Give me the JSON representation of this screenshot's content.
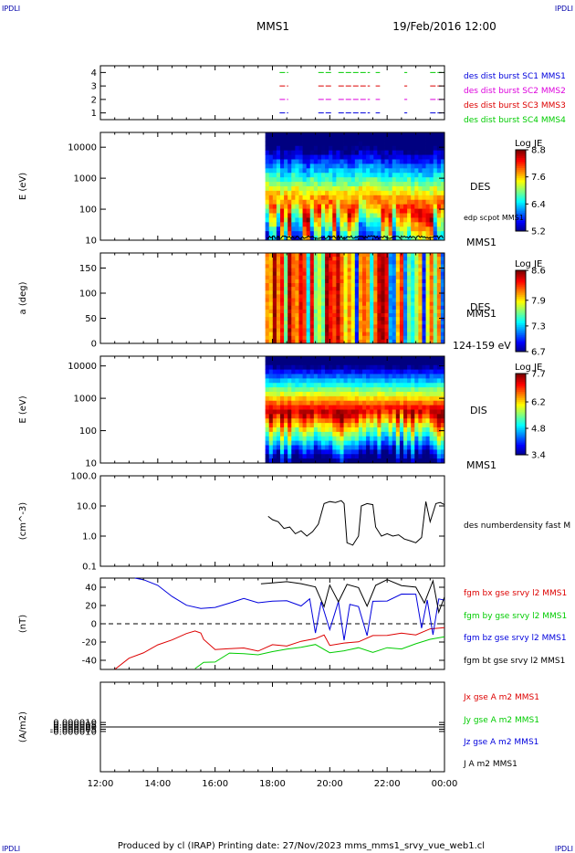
{
  "header": {
    "corner_tl": "IPDLI",
    "corner_tr": "IPDLI",
    "corner_bl": "IPDLI",
    "corner_br": "IPDLI",
    "mission": "MMS1",
    "datetime": "19/Feb/2016 12:00"
  },
  "footer": {
    "credit": "Produced by cl (IRAP)   Printing date: 27/Nov/2023   mms_mms1_srvy_vue_web1.cl"
  },
  "colors": {
    "blue": "#0000dd",
    "magenta": "#dd00dd",
    "red": "#dd0000",
    "green": "#00cc00",
    "black": "#000000"
  },
  "time_axis": {
    "ticks": [
      "12:00",
      "14:00",
      "16:00",
      "18:00",
      "20:00",
      "22:00",
      "00:00"
    ],
    "start_hour": 12,
    "end_hour": 24
  },
  "chart_data": [
    {
      "id": "availability",
      "type": "scatter",
      "ylabel": "",
      "ylim": [
        0.5,
        4.5
      ],
      "yticks": [
        "1",
        "2",
        "3",
        "4"
      ],
      "legend": [
        {
          "label": "des dist burst SC1 MMS1",
          "color": "#0000dd"
        },
        {
          "label": "des dist burst SC2 MMS2",
          "color": "#dd00dd"
        },
        {
          "label": "des dist burst SC3 MMS3",
          "color": "#dd0000"
        },
        {
          "label": "des dist burst SC4 MMS4",
          "color": "#00cc00"
        }
      ],
      "segments": [
        [
          18.25,
          18.55
        ],
        [
          19.6,
          20.1
        ],
        [
          20.3,
          21.4
        ],
        [
          21.6,
          21.75
        ],
        [
          22.6,
          22.7
        ],
        [
          23.5,
          23.9
        ],
        [
          23.95,
          24.0
        ]
      ]
    },
    {
      "id": "des-energy",
      "type": "heatmap",
      "ylabel": "E (eV)",
      "yscale": "log",
      "ylim": [
        10,
        30000
      ],
      "yticks": [
        "10",
        "100",
        "1000",
        "10000"
      ],
      "data_start_hour": 17.75,
      "label_right": "DES",
      "label_right2": "edp scpot MMS1",
      "label_bottom": "MMS1",
      "colorbar": {
        "title": "Log JE",
        "ticks": [
          "8.8",
          "7.6",
          "6.4",
          "5.2"
        ],
        "min": 5.2,
        "max": 8.8
      }
    },
    {
      "id": "des-pitch",
      "type": "heatmap",
      "ylabel": "a (deg)",
      "ylim": [
        0,
        180
      ],
      "yticks": [
        "0",
        "50",
        "100",
        "150"
      ],
      "data_start_hour": 17.75,
      "label_right": "DES",
      "label_right2": "MMS1",
      "label_bottom": "124-159 eV",
      "colorbar": {
        "title": "Log JE",
        "ticks": [
          "8.6",
          "7.9",
          "7.3",
          "6.7"
        ],
        "min": 6.7,
        "max": 8.6
      }
    },
    {
      "id": "dis-energy",
      "type": "heatmap",
      "ylabel": "E (eV)",
      "yscale": "log",
      "ylim": [
        10,
        20000
      ],
      "yticks": [
        "10",
        "100",
        "1000",
        "10000"
      ],
      "data_start_hour": 17.75,
      "label_right": "DIS",
      "label_bottom": "MMS1",
      "colorbar": {
        "title": "Log JE",
        "ticks": [
          "7.7",
          "6.2",
          "4.8",
          "3.4"
        ],
        "min": 3.4,
        "max": 7.7
      }
    },
    {
      "id": "density",
      "type": "line",
      "ylabel": "(cm^-3)",
      "yscale": "log",
      "ylim": [
        0.1,
        100
      ],
      "yticks": [
        "0.1",
        "1.0",
        "10.0",
        "100.0"
      ],
      "series": [
        {
          "name": "des numberdensity fast M",
          "color": "#000000",
          "points": [
            [
              17.85,
              4.5
            ],
            [
              18.0,
              3.5
            ],
            [
              18.2,
              3.0
            ],
            [
              18.4,
              1.8
            ],
            [
              18.6,
              2.0
            ],
            [
              18.8,
              1.2
            ],
            [
              19.0,
              1.5
            ],
            [
              19.2,
              1.0
            ],
            [
              19.4,
              1.4
            ],
            [
              19.6,
              2.5
            ],
            [
              19.8,
              12.0
            ],
            [
              20.0,
              14.0
            ],
            [
              20.2,
              13.0
            ],
            [
              20.4,
              15.0
            ],
            [
              20.5,
              12.0
            ],
            [
              20.6,
              0.6
            ],
            [
              20.8,
              0.5
            ],
            [
              21.0,
              1.0
            ],
            [
              21.1,
              10.0
            ],
            [
              21.3,
              12.0
            ],
            [
              21.5,
              11.0
            ],
            [
              21.6,
              2.0
            ],
            [
              21.8,
              1.0
            ],
            [
              22.0,
              1.2
            ],
            [
              22.2,
              1.0
            ],
            [
              22.4,
              1.1
            ],
            [
              22.6,
              0.8
            ],
            [
              22.8,
              0.7
            ],
            [
              23.0,
              0.6
            ],
            [
              23.2,
              0.9
            ],
            [
              23.35,
              14.0
            ],
            [
              23.5,
              3.0
            ],
            [
              23.7,
              12.0
            ],
            [
              23.85,
              13.0
            ],
            [
              24.0,
              11.0
            ]
          ]
        }
      ]
    },
    {
      "id": "magnetic-field",
      "type": "line",
      "ylabel": "(nT)",
      "ylim": [
        -50,
        50
      ],
      "yticks": [
        "-40",
        "-20",
        "0",
        "20",
        "40"
      ],
      "series": [
        {
          "name": "fgm bx gse srvy l2 MMS1",
          "color": "#dd0000",
          "points": [
            [
              12.5,
              -50
            ],
            [
              13.0,
              -40
            ],
            [
              13.5,
              -32
            ],
            [
              14.0,
              -25
            ],
            [
              14.5,
              -18
            ],
            [
              15.0,
              -10
            ],
            [
              15.3,
              -5
            ],
            [
              15.5,
              -8
            ],
            [
              15.6,
              -20
            ],
            [
              16.0,
              -28
            ],
            [
              16.5,
              -25
            ],
            [
              17.0,
              -28
            ],
            [
              17.5,
              -30
            ],
            [
              18.0,
              -25
            ],
            [
              18.5,
              -22
            ],
            [
              19.0,
              -20
            ],
            [
              19.5,
              -18
            ],
            [
              19.8,
              -12
            ],
            [
              20.0,
              -22
            ],
            [
              20.5,
              -20
            ],
            [
              21.0,
              -18
            ],
            [
              21.5,
              -14
            ],
            [
              22.0,
              -15
            ],
            [
              22.5,
              -12
            ],
            [
              23.0,
              -12
            ],
            [
              23.5,
              -8
            ],
            [
              24.0,
              -5
            ]
          ]
        },
        {
          "name": "fgm by gse srvy l2 MMS1",
          "color": "#00cc00",
          "points": [
            [
              15.3,
              -50
            ],
            [
              15.6,
              -44
            ],
            [
              16.0,
              -40
            ],
            [
              16.5,
              -32
            ],
            [
              17.0,
              -35
            ],
            [
              17.5,
              -33
            ],
            [
              18.0,
              -30
            ],
            [
              18.5,
              -30
            ],
            [
              19.0,
              -28
            ],
            [
              19.5,
              -25
            ],
            [
              20.0,
              -30
            ],
            [
              20.5,
              -28
            ],
            [
              21.0,
              -25
            ],
            [
              21.5,
              -30
            ],
            [
              22.0,
              -28
            ],
            [
              22.5,
              -25
            ],
            [
              23.0,
              -22
            ],
            [
              23.5,
              -20
            ],
            [
              24.0,
              -15
            ]
          ]
        },
        {
          "name": "fgm bz gse srvy l2 MMS1",
          "color": "#0000dd",
          "points": [
            [
              13.2,
              50
            ],
            [
              13.5,
              47
            ],
            [
              14.0,
              40
            ],
            [
              14.5,
              32
            ],
            [
              15.0,
              22
            ],
            [
              15.5,
              18
            ],
            [
              16.0,
              16
            ],
            [
              16.5,
              22
            ],
            [
              17.0,
              26
            ],
            [
              17.5,
              24
            ],
            [
              18.0,
              26
            ],
            [
              18.5,
              24
            ],
            [
              19.0,
              22
            ],
            [
              19.3,
              26
            ],
            [
              19.5,
              -10
            ],
            [
              19.7,
              24
            ],
            [
              20.0,
              -5
            ],
            [
              20.3,
              24
            ],
            [
              20.5,
              -15
            ],
            [
              20.7,
              22
            ],
            [
              21.0,
              20
            ],
            [
              21.3,
              -10
            ],
            [
              21.5,
              25
            ],
            [
              22.0,
              27
            ],
            [
              22.5,
              30
            ],
            [
              23.0,
              30
            ],
            [
              23.2,
              -5
            ],
            [
              23.4,
              28
            ],
            [
              23.6,
              -10
            ],
            [
              23.8,
              25
            ],
            [
              24.0,
              28
            ]
          ]
        },
        {
          "name": "fgm bt gse srvy l2 MMS1",
          "color": "#000000",
          "points": [
            [
              17.6,
              46
            ],
            [
              18.0,
              44
            ],
            [
              18.5,
              46
            ],
            [
              19.0,
              42
            ],
            [
              19.5,
              40
            ],
            [
              19.8,
              20
            ],
            [
              20.0,
              44
            ],
            [
              20.3,
              25
            ],
            [
              20.6,
              42
            ],
            [
              21.0,
              38
            ],
            [
              21.3,
              20
            ],
            [
              21.6,
              44
            ],
            [
              22.0,
              46
            ],
            [
              22.5,
              44
            ],
            [
              23.0,
              42
            ],
            [
              23.3,
              20
            ],
            [
              23.6,
              44
            ],
            [
              23.8,
              15
            ],
            [
              24.0,
              30
            ]
          ]
        }
      ]
    },
    {
      "id": "current-density",
      "type": "line",
      "ylabel": "(A/m2)",
      "ylim": [
        -0.0001,
        0.0001
      ],
      "yticks": [
        "-0.000010",
        "-0.000005",
        "0.000000",
        "0.000005",
        "0.000010"
      ],
      "series": [
        {
          "name": "Jx gse A m2 MMS1",
          "color": "#dd0000",
          "points": []
        },
        {
          "name": "Jy gse A m2 MMS1",
          "color": "#00cc00",
          "points": []
        },
        {
          "name": "Jz gse A m2 MMS1",
          "color": "#0000dd",
          "points": []
        },
        {
          "name": "J A m2 MMS1",
          "color": "#000000",
          "points": [
            [
              12.0,
              0
            ],
            [
              24.0,
              0
            ]
          ]
        }
      ]
    }
  ]
}
